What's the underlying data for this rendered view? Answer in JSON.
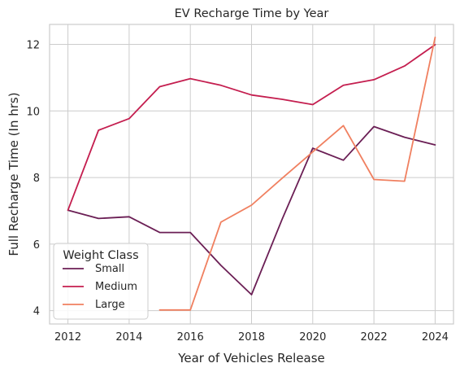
{
  "chart_data": {
    "type": "line",
    "title": "EV Recharge Time by Year",
    "xlabel": "Year of Vehicles Release",
    "ylabel": "Full Recharge Time (In hrs)",
    "xlim": [
      2011.4,
      2024.6
    ],
    "ylim": [
      3.6,
      12.6
    ],
    "xticks": [
      2012,
      2014,
      2016,
      2018,
      2020,
      2022,
      2024
    ],
    "yticks": [
      4,
      6,
      8,
      10,
      12
    ],
    "grid": true,
    "legend": {
      "title": "Weight Class",
      "placement": "lower-left"
    },
    "series": [
      {
        "name": "Small",
        "color": "#6b1f55",
        "x": [
          2012,
          2013,
          2014,
          2015,
          2016,
          2017,
          2018,
          2019,
          2020,
          2021,
          2022,
          2023,
          2024
        ],
        "y": [
          7.02,
          6.77,
          6.82,
          6.35,
          6.35,
          5.36,
          4.48,
          6.75,
          8.88,
          8.52,
          9.53,
          9.21,
          8.98
        ]
      },
      {
        "name": "Medium",
        "color": "#c41e4f",
        "x": [
          2012,
          2013,
          2014,
          2015,
          2016,
          2017,
          2018,
          2019,
          2020,
          2021,
          2022,
          2023,
          2024
        ],
        "y": [
          7.02,
          9.42,
          9.77,
          10.73,
          10.97,
          10.77,
          10.48,
          10.35,
          10.19,
          10.77,
          10.94,
          11.35,
          11.99
        ]
      },
      {
        "name": "Large",
        "color": "#f08060",
        "x": [
          2015,
          2016,
          2017,
          2018,
          2019,
          2020,
          2021,
          2022,
          2023,
          2024
        ],
        "y": [
          4.02,
          4.02,
          6.66,
          7.17,
          7.98,
          8.77,
          9.56,
          7.94,
          7.89,
          12.21
        ]
      }
    ]
  }
}
